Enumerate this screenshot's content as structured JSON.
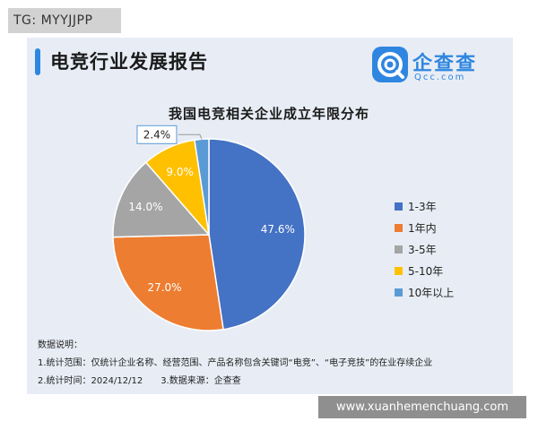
{
  "tag": {
    "text": "TG: MYYJJPP"
  },
  "header": {
    "title": "电竞行业发展报告"
  },
  "logo": {
    "name": "企查查",
    "sub": "Qcc.com"
  },
  "chart_data": {
    "type": "pie",
    "title": "我国电竞相关企业成立年限分布",
    "categories": [
      "1-3年",
      "1年内",
      "3-5年",
      "5-10年",
      "10年以上"
    ],
    "values": [
      47.6,
      27.0,
      14.0,
      9.0,
      2.4
    ],
    "value_labels": [
      "47.6%",
      "27.0%",
      "14.0%",
      "9.0%",
      "2.4%"
    ],
    "colors": [
      "#4472c4",
      "#ed7d31",
      "#a5a5a5",
      "#ffc000",
      "#5b9bd5"
    ],
    "legend_position": "right"
  },
  "notes": {
    "heading": "数据说明：",
    "line1": "1.统计范围：仅统计企业名称、经营范围、产品名称包含关键词“电竞”、“电子竞技”的在业存续企业",
    "line2": "2.统计时间：2024/12/12",
    "line3": "3.数据来源：企查查"
  },
  "watermark": {
    "text": "www.xuanhemenchuang.com"
  }
}
